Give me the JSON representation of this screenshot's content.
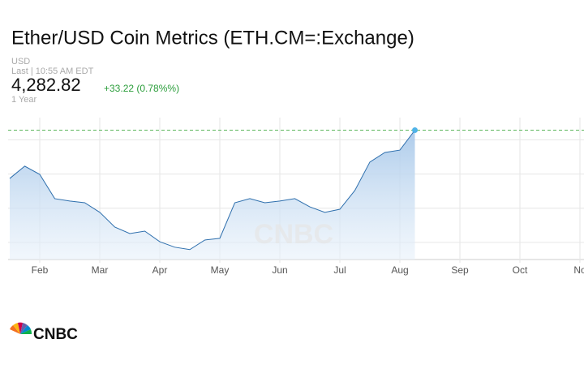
{
  "chart_data": {
    "type": "area",
    "title": "Ether/USD Coin Metrics (ETH.CM=:Exchange)",
    "currency": "USD",
    "last_time": "Last | 10:55 AM EDT",
    "price": "4,282.82",
    "change": "+33.22 (0.78%%)",
    "range": "1 Year",
    "brand": "CNBC",
    "categories": [
      null,
      null,
      "Feb",
      null,
      null,
      null,
      "Mar",
      null,
      null,
      null,
      "Apr",
      null,
      null,
      null,
      "May",
      null,
      null,
      null,
      "Jun",
      null,
      null,
      null,
      "Jul",
      null,
      null,
      null,
      "Aug",
      null,
      null,
      null,
      "Sep",
      null,
      null,
      null,
      "Oct",
      null,
      null,
      null,
      "No"
    ],
    "series": [
      {
        "name": "ETH.CM=",
        "color": "#2e6fad",
        "values": [
          2870,
          3230,
          2990,
          2280,
          2210,
          2160,
          1880,
          1450,
          1260,
          1330,
          1020,
          860,
          790,
          1070,
          1120,
          2160,
          2280,
          2160,
          2210,
          2280,
          2040,
          1880,
          1970,
          2520,
          3350,
          3630,
          3700,
          4282.82,
          null,
          null,
          null,
          null,
          null,
          null,
          null,
          null,
          null,
          null,
          null
        ]
      }
    ],
    "ylim": [
      500,
      4650
    ],
    "yticks": [
      1000,
      2000,
      3000,
      4000
    ],
    "grid": true
  }
}
